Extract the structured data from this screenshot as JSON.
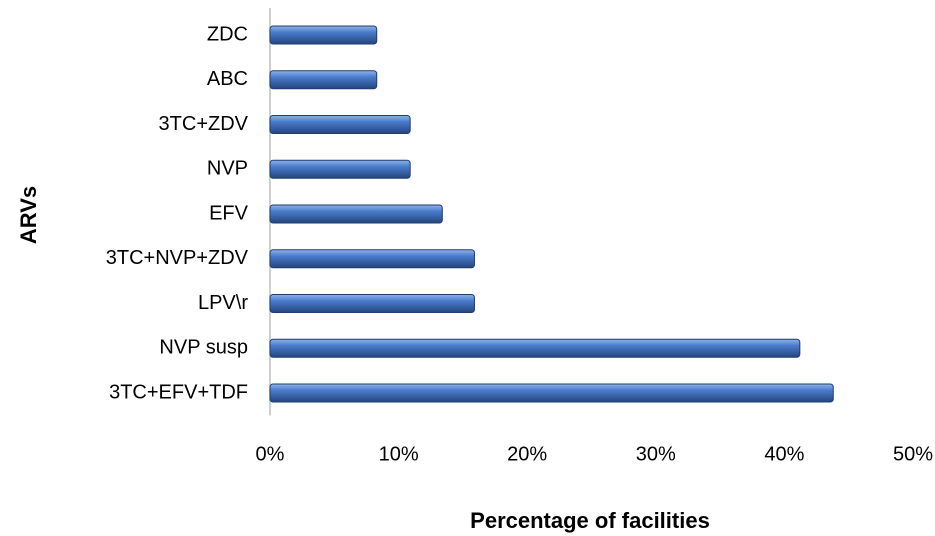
{
  "chart_data": {
    "type": "bar",
    "orientation": "horizontal",
    "x_label": "Percentage of facilities",
    "y_label": "ARVs",
    "categories": [
      "3TC+EFV+TDF",
      "NVP susp",
      "LPV\\r",
      "3TC+NVP+ZDV",
      "EFV",
      "NVP",
      "3TC+ZDV",
      "ABC",
      "ZDC"
    ],
    "values": [
      43.8,
      41.2,
      15.9,
      15.9,
      13.4,
      10.9,
      10.9,
      8.3,
      8.3
    ],
    "color": "#3d6cb5",
    "xlim": [
      0,
      50
    ],
    "xticks": [
      {
        "value": 0,
        "label": "0%"
      },
      {
        "value": 10,
        "label": "10%"
      },
      {
        "value": 20,
        "label": "20%"
      },
      {
        "value": 30,
        "label": "30%"
      },
      {
        "value": 40,
        "label": "40%"
      },
      {
        "value": 50,
        "label": "50%"
      }
    ],
    "grid": false
  }
}
